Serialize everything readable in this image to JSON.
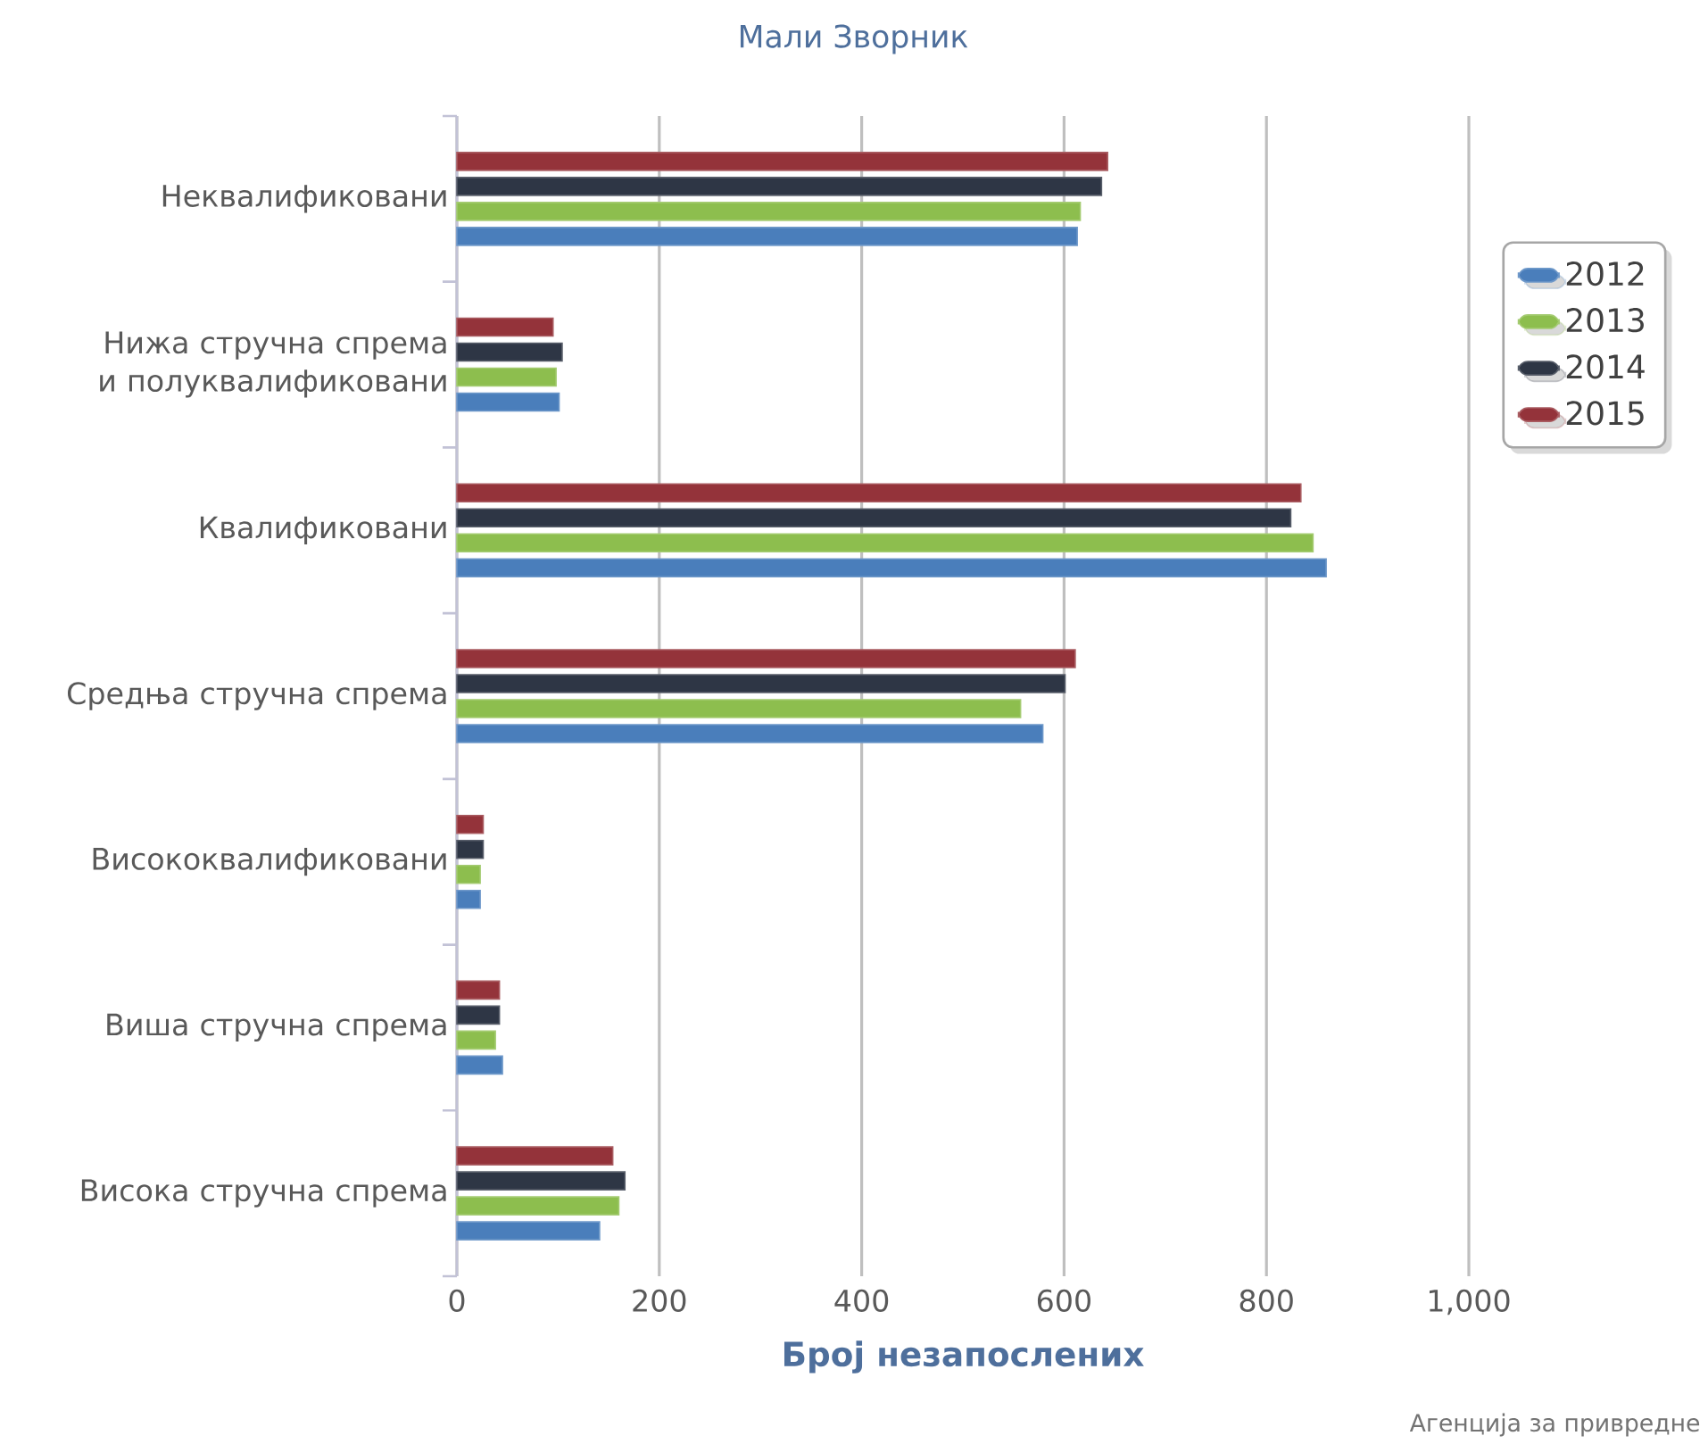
{
  "chart_data": {
    "type": "bar",
    "orientation": "horizontal",
    "title": "Мали Зворник",
    "xlabel": "Број незапослених",
    "categories": [
      "Неквалификовани",
      "Нижа стручна спрема и полуквалификовани",
      "Квалификовани",
      "Средња стручна спрема",
      "Висококвалификовани",
      "Виша стручна спрема",
      "Висока стручна спрема"
    ],
    "series": [
      {
        "name": "2012",
        "color": "#4a7ebb",
        "values": [
          613,
          101,
          859,
          579,
          23,
          45,
          141
        ]
      },
      {
        "name": "2013",
        "color": "#8dbe4e",
        "values": [
          616,
          98,
          846,
          557,
          23,
          38,
          160
        ]
      },
      {
        "name": "2014",
        "color": "#2e3645",
        "values": [
          637,
          104,
          824,
          601,
          26,
          42,
          166
        ]
      },
      {
        "name": "2015",
        "color": "#94333a",
        "values": [
          643,
          95,
          834,
          611,
          26,
          42,
          154
        ]
      }
    ],
    "xlim": [
      0,
      1000
    ],
    "xticks": [
      0,
      200,
      400,
      600,
      800,
      {
        "value": 1000,
        "label": "1,000"
      }
    ],
    "grid": "x",
    "legend": "right",
    "annotations": [
      "Агенција за привредне"
    ]
  }
}
